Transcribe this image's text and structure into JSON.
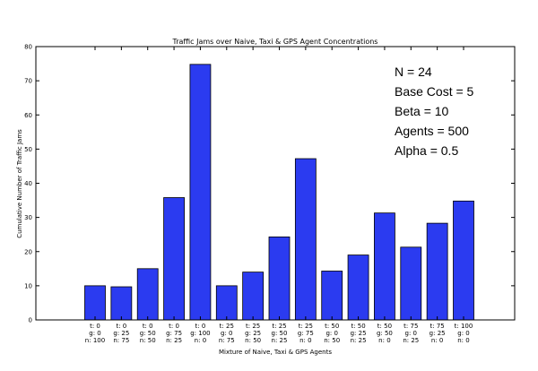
{
  "chart_data": {
    "type": "bar",
    "title": "Traffic Jams over Naive, Taxi & GPS Agent Concentrations",
    "xlabel": "Mixture of Naive, Taxi & GPS Agents",
    "ylabel": "Cumulative Number of Traffic Jams",
    "ylim": [
      0,
      80
    ],
    "yticks": [
      0,
      10,
      20,
      30,
      40,
      50,
      60,
      70,
      80
    ],
    "grid": false,
    "bar_color": "#2b3bf0",
    "categories": [
      [
        "t: 0",
        "g: 0",
        "n: 100"
      ],
      [
        "t: 0",
        "g: 25",
        "n: 75"
      ],
      [
        "t: 0",
        "g: 50",
        "n: 50"
      ],
      [
        "t: 0",
        "g: 75",
        "n: 25"
      ],
      [
        "t: 0",
        "g: 100",
        "n: 0"
      ],
      [
        "t: 25",
        "g: 0",
        "n: 75"
      ],
      [
        "t: 25",
        "g: 25",
        "n: 50"
      ],
      [
        "t: 25",
        "g: 50",
        "n: 25"
      ],
      [
        "t: 25",
        "g: 75",
        "n: 0"
      ],
      [
        "t: 50",
        "g: 0",
        "n: 50"
      ],
      [
        "t: 50",
        "g: 25",
        "n: 25"
      ],
      [
        "t: 50",
        "g: 50",
        "n: 0"
      ],
      [
        "t: 75",
        "g: 0",
        "n: 25"
      ],
      [
        "t: 75",
        "g: 25",
        "n: 0"
      ],
      [
        "t: 100",
        "g: 0",
        "n: 0"
      ]
    ],
    "values": [
      10,
      9.7,
      15,
      35.8,
      74.8,
      10,
      14,
      24.3,
      47.2,
      14.3,
      19,
      31.3,
      21.3,
      28.3,
      34.8
    ],
    "annotations": [
      "N = 24",
      "Base Cost = 5",
      "Beta = 10",
      "Agents = 500",
      "Alpha = 0.5"
    ]
  }
}
